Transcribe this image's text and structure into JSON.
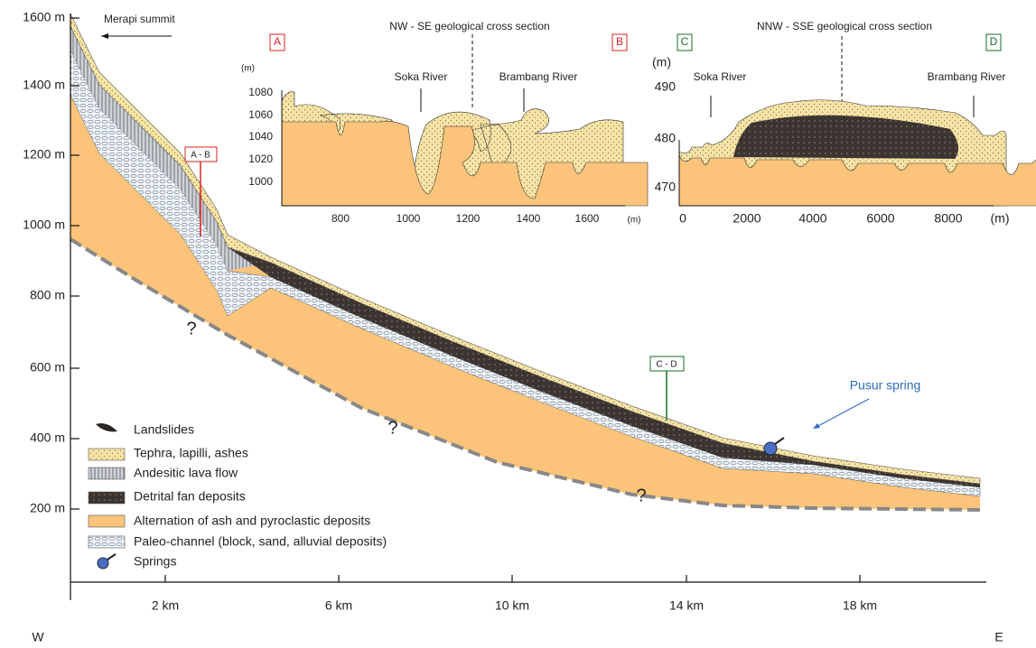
{
  "main_axis": {
    "y_labels": [
      "1600 m",
      "1400 m",
      "1200 m",
      "1000 m",
      "800 m",
      "600 m",
      "400 m",
      "200 m"
    ],
    "x_labels": [
      "2 km",
      "6 km",
      "10 km",
      "14 km",
      "18 km"
    ],
    "west": "W",
    "east": "E"
  },
  "annotations": {
    "summit": "Merapi summit",
    "section_ab": "A - B",
    "section_cd": "C - D",
    "spring": "Pusur spring",
    "unknown": [
      "?",
      "?",
      "?"
    ]
  },
  "legend": [
    "Landslides",
    "Tephra, lapilli, ashes",
    "Andesitic lava flow",
    "Detrital fan deposits",
    "Alternation of ash and pyroclastic deposits",
    "Paleo-channel (block, sand, alluvial deposits)",
    "Springs"
  ],
  "inset_ab": {
    "title": "NW - SE geological cross section",
    "start": "A",
    "end": "B",
    "rivers": [
      "Soka River",
      "Brambang River"
    ],
    "y_unit": "(m)",
    "y_labels": [
      "1080",
      "1060",
      "1040",
      "1020",
      "1000"
    ],
    "x_labels": [
      "800",
      "1000",
      "1200",
      "1400",
      "1600"
    ],
    "x_unit": "(m)"
  },
  "inset_cd": {
    "title": "NNW - SSE geological cross section",
    "start": "C",
    "end": "D",
    "rivers": [
      "Soka River",
      "Brambang River"
    ],
    "y_unit": "(m)",
    "y_labels": [
      "490",
      "480",
      "470"
    ],
    "x_labels": [
      "0",
      "2000",
      "4000",
      "6000",
      "8000"
    ],
    "x_unit": "(m)"
  }
}
